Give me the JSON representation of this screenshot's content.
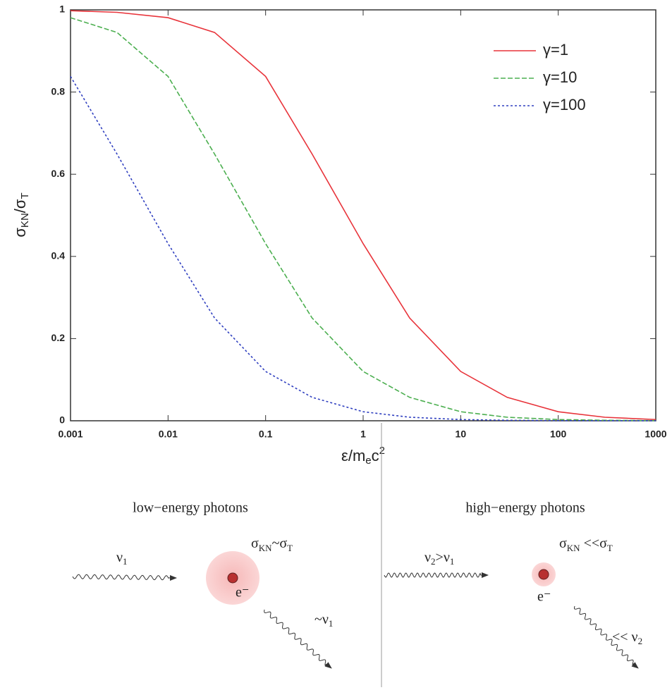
{
  "chart_data": {
    "type": "line",
    "x": [
      0.001,
      0.003,
      0.01,
      0.03,
      0.1,
      0.3,
      1,
      3,
      10,
      30,
      100,
      300,
      1000
    ],
    "series": [
      {
        "name": "γ=1",
        "color": "#e8333a",
        "values": [
          0.998,
          0.994,
          0.981,
          0.945,
          0.838,
          0.649,
          0.431,
          0.25,
          0.12,
          0.057,
          0.022,
          0.0086,
          0.003
        ]
      },
      {
        "name": "γ=10",
        "color": "#4caf50",
        "values": [
          0.981,
          0.945,
          0.838,
          0.649,
          0.431,
          0.25,
          0.12,
          0.057,
          0.022,
          0.0086,
          0.003,
          0.0012,
          0.0004
        ]
      },
      {
        "name": "γ=100",
        "color": "#3040c0",
        "values": [
          0.838,
          0.649,
          0.431,
          0.25,
          0.12,
          0.057,
          0.022,
          0.0086,
          0.003,
          0.0012,
          0.0004,
          0.00012,
          5e-05
        ]
      }
    ],
    "xlim": [
      0.001,
      1000
    ],
    "xticks": [
      0.001,
      0.01,
      0.1,
      1,
      10,
      100,
      1000
    ],
    "xscale": "log",
    "ylim": [
      0,
      1
    ],
    "yticks": [
      0,
      0.2,
      0.4,
      0.6,
      0.8,
      1
    ],
    "xlabel": [
      "ε/m",
      "e",
      "c",
      "2"
    ],
    "ylabel": [
      "σ",
      "KN",
      "/σ",
      "T"
    ],
    "legend": "upper right"
  },
  "diagram": {
    "low": {
      "title": "low−energy photons",
      "incoming": [
        "ν",
        "1"
      ],
      "cross_section": [
        "σ",
        "KN",
        "~σ",
        "T"
      ],
      "electron": "e⁻",
      "outgoing": [
        "~ν",
        "1"
      ]
    },
    "high": {
      "title": "high−energy photons",
      "incoming": [
        "ν",
        "2",
        ">ν",
        "1"
      ],
      "cross_section": [
        "σ",
        "KN",
        " <<σ",
        "T"
      ],
      "electron": "e⁻",
      "outgoing": [
        "<< ν",
        "2"
      ]
    }
  }
}
